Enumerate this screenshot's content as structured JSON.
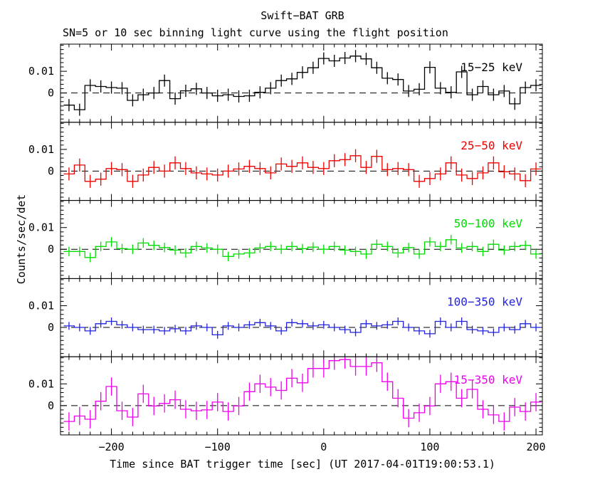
{
  "chart_data": {
    "type": "line",
    "style": "step-histogram-with-error-bars",
    "title": "Swift−BAT GRB",
    "subtitle": "SN=5 or 10 sec binning light curve using the flight position",
    "xlabel": "Time since BAT trigger time [sec] (UT 2017-04-01T19:00:53.1)",
    "ylabel": "Counts/sec/det",
    "grid": false,
    "legend_position": "inside-top-right-per-panel",
    "xlim": [
      -248,
      206
    ],
    "x_ticks": [
      -200,
      -100,
      0,
      100,
      200
    ],
    "x_tick_labels": [
      "−200",
      "−100",
      "0",
      "100",
      "200"
    ],
    "x_minor_step": 10,
    "ylim": [
      -0.0135,
      0.0225
    ],
    "y_ticks": [
      0,
      0.01
    ],
    "y_tick_labels": [
      "0",
      "0.01"
    ],
    "y_minor_step": 0.002,
    "zero_line": {
      "value": 0,
      "style": "dashed",
      "color": "#000000"
    },
    "bin_start": -245,
    "bin_width": 10,
    "panels": [
      {
        "label": "15−25 keV",
        "color": "#000000",
        "err": 0.0028,
        "values": [
          -0.0056,
          -0.0077,
          0.0035,
          0.003,
          0.0025,
          0.0022,
          -0.0034,
          -0.0008,
          0.0,
          0.0057,
          -0.0026,
          0.001,
          0.0019,
          0.0,
          -0.0013,
          -0.0008,
          -0.0016,
          -0.0013,
          0.0003,
          0.0022,
          0.0057,
          0.0065,
          0.0095,
          0.0116,
          0.0159,
          0.0148,
          0.0161,
          0.017,
          0.0157,
          0.0116,
          0.0068,
          0.0062,
          0.0009,
          0.0017,
          0.0118,
          0.0022,
          0.0003,
          0.0097,
          -0.0008,
          0.003,
          -0.0008,
          0.0009,
          -0.005,
          0.0025,
          0.0035
        ]
      },
      {
        "label": "25−50 keV",
        "color": "#ee0000",
        "err": 0.003,
        "values": [
          -0.0013,
          0.0028,
          -0.0047,
          -0.0037,
          0.0012,
          0.0007,
          -0.0047,
          -0.0018,
          0.0017,
          0.0,
          0.0038,
          0.0012,
          -0.0008,
          -0.0013,
          -0.0018,
          0.0,
          0.001,
          0.0022,
          0.0012,
          -0.0008,
          0.0033,
          0.0022,
          0.0038,
          0.0017,
          0.0012,
          0.0048,
          0.0053,
          0.0071,
          0.0017,
          0.0068,
          0.0007,
          0.0012,
          0.0007,
          -0.0047,
          -0.0034,
          -0.0013,
          0.0038,
          -0.0018,
          -0.0034,
          -0.0008,
          0.0038,
          -0.0003,
          -0.0013,
          -0.0044,
          0.001
        ]
      },
      {
        "label": "50−100 keV",
        "color": "#00dd00",
        "err": 0.0022,
        "values": [
          -0.001,
          -0.001,
          -0.0038,
          0.0013,
          0.0034,
          0.0003,
          0.0,
          0.0029,
          0.0018,
          0.0008,
          -0.0004,
          -0.0017,
          0.0013,
          0.0006,
          0.0,
          -0.0033,
          -0.0022,
          -0.0017,
          0.0006,
          0.0013,
          0.0,
          0.0013,
          0.0003,
          0.001,
          0.0,
          0.0013,
          -0.0004,
          -0.001,
          -0.0022,
          0.0023,
          0.0013,
          -0.0017,
          0.0008,
          -0.0022,
          0.0034,
          0.0013,
          0.0044,
          0.0006,
          0.0013,
          -0.001,
          0.0023,
          -0.0004,
          0.0013,
          0.0018,
          -0.0022
        ]
      },
      {
        "label": "100−350 keV",
        "color": "#2222dd",
        "err": 0.0018,
        "values": [
          0.0007,
          0.0,
          -0.0016,
          0.0017,
          0.0028,
          0.0012,
          0.0,
          -0.001,
          -0.001,
          -0.0016,
          -0.0006,
          -0.0016,
          0.0007,
          0.0,
          -0.0034,
          0.0007,
          0.0,
          0.0012,
          0.0022,
          0.0007,
          -0.0016,
          0.0022,
          0.0017,
          0.0007,
          0.0012,
          0.0,
          -0.001,
          -0.0023,
          0.0017,
          0.0007,
          0.0012,
          0.0028,
          0.0,
          -0.0016,
          -0.0029,
          0.0028,
          0.0,
          0.0028,
          -0.001,
          -0.0016,
          -0.0023,
          0.0,
          -0.001,
          0.0017,
          0.0
        ]
      },
      {
        "label": "15−350 keV",
        "color": "#ee00ee",
        "err": 0.0042,
        "values": [
          -0.0073,
          -0.0048,
          -0.0063,
          0.002,
          0.0088,
          -0.0024,
          -0.0053,
          0.0054,
          -0.0002,
          0.001,
          0.0027,
          -0.0017,
          -0.0024,
          -0.002,
          0.0016,
          -0.0027,
          -0.0002,
          0.0064,
          0.01,
          0.0085,
          0.007,
          0.0126,
          0.0105,
          0.0171,
          0.0171,
          0.0207,
          0.0212,
          0.018,
          0.018,
          0.0197,
          0.011,
          0.0034,
          -0.0058,
          -0.0033,
          -0.0002,
          0.01,
          0.011,
          0.0034,
          0.0075,
          -0.0017,
          -0.0043,
          -0.0073,
          -0.0007,
          -0.0027,
          0.0016
        ]
      }
    ]
  }
}
